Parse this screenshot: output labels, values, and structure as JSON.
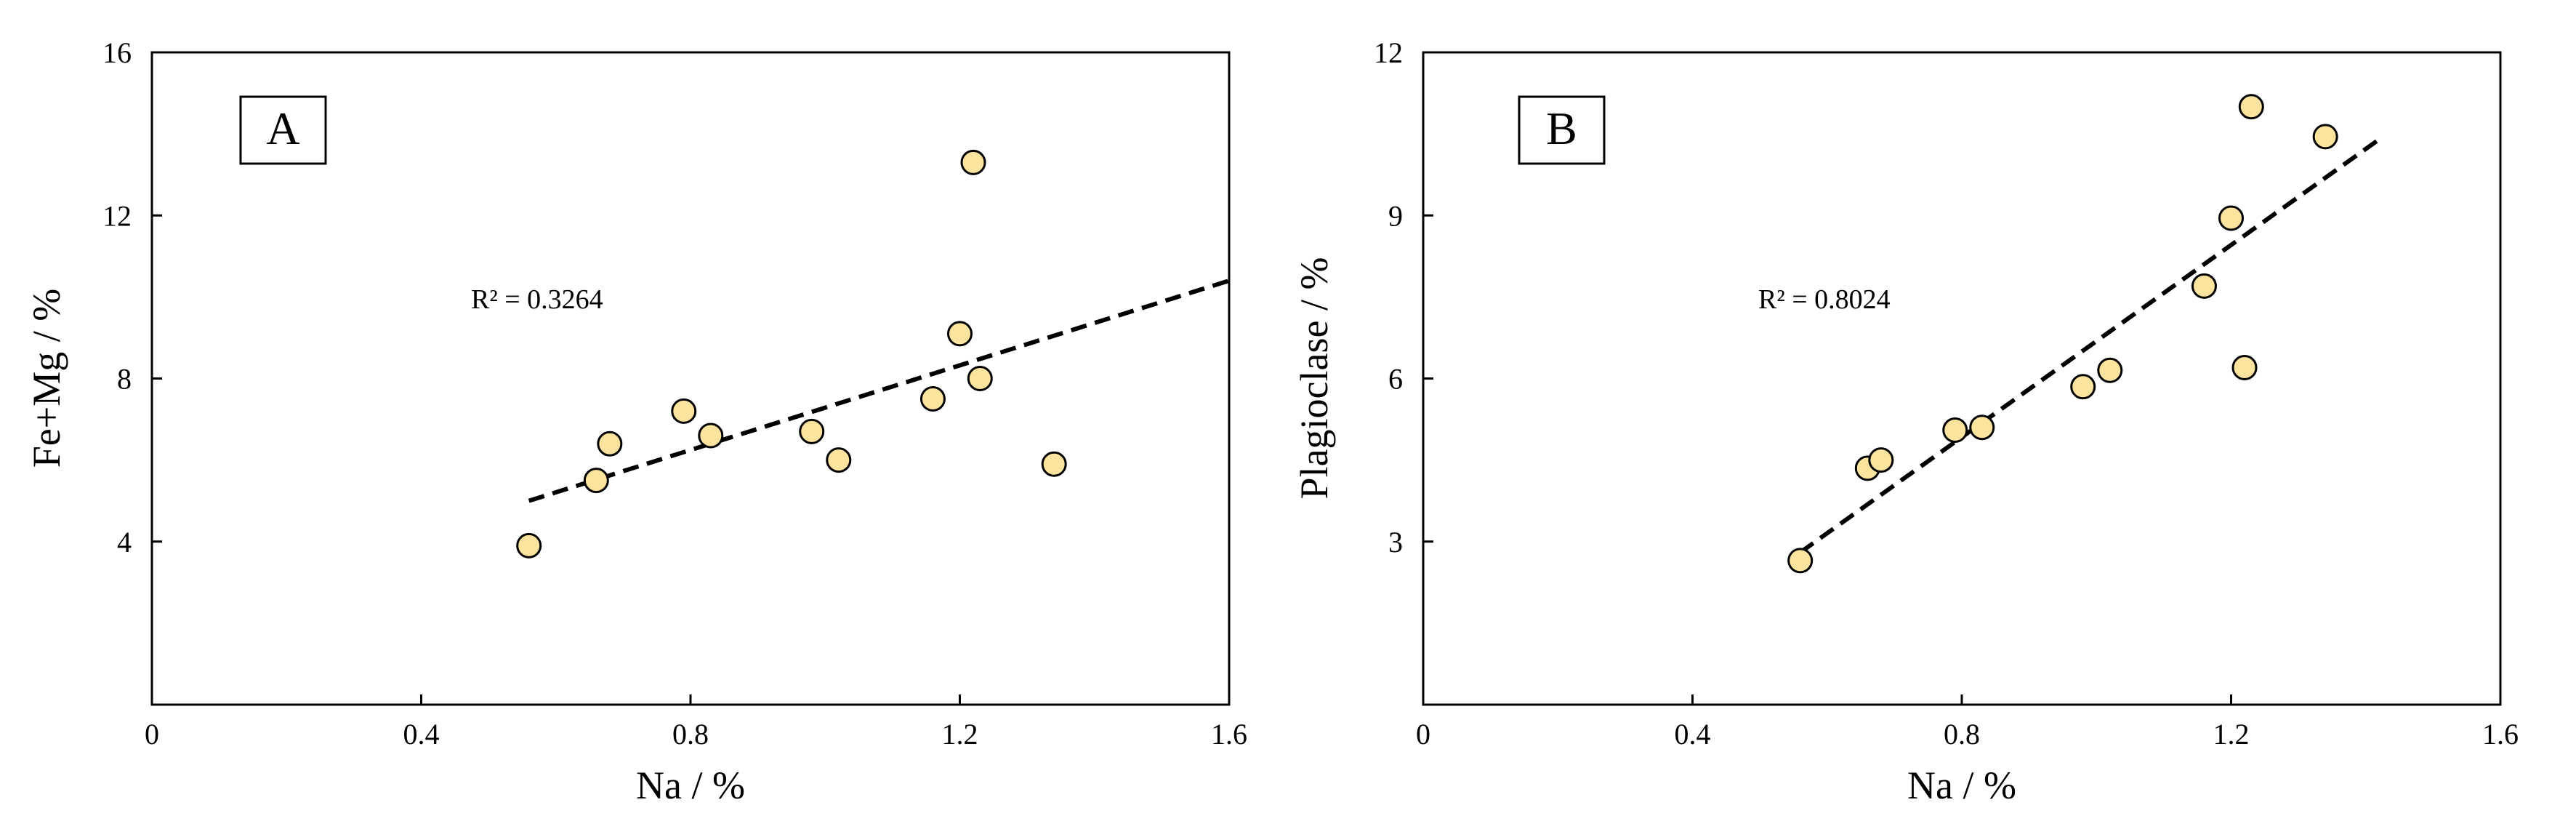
{
  "colors": {
    "marker_fill": "#fde49e",
    "marker_stroke": "#000000",
    "trendline": "#000000",
    "axis": "#000000",
    "background": "#ffffff"
  },
  "chart_data": [
    {
      "type": "scatter",
      "panel_label": "A",
      "title": "",
      "xlabel": "Na / %",
      "ylabel": "Fe+Mg / %",
      "xlim": [
        0,
        1.6
      ],
      "ylim": [
        0,
        16
      ],
      "x_ticks": [
        "0",
        "0.4",
        "0.8",
        "1.2",
        "1.6"
      ],
      "y_ticks": [
        "4",
        "8",
        "12",
        "16"
      ],
      "y_tick_values": [
        4,
        8,
        12,
        16
      ],
      "grid": false,
      "annotation": "R² = 0.3264",
      "trendline": {
        "style": "dashed",
        "x": [
          0.56,
          1.6
        ],
        "y": [
          5.0,
          10.4
        ]
      },
      "series": [
        {
          "x": [
            0.56,
            0.66,
            0.68,
            0.79,
            0.83,
            0.98,
            1.02,
            1.16,
            1.2,
            1.22,
            1.23,
            1.34
          ],
          "y": [
            3.9,
            5.5,
            6.4,
            7.2,
            6.6,
            6.7,
            6.0,
            7.5,
            9.1,
            13.3,
            8.0,
            5.9
          ]
        }
      ]
    },
    {
      "type": "scatter",
      "panel_label": "B",
      "title": "",
      "xlabel": "Na / %",
      "ylabel": "Plagioclase / %",
      "xlim": [
        0,
        1.6
      ],
      "ylim": [
        0,
        12
      ],
      "x_ticks": [
        "0",
        "0.4",
        "0.8",
        "1.2",
        "1.6"
      ],
      "y_ticks": [
        "3",
        "6",
        "9",
        "12"
      ],
      "y_tick_values": [
        3,
        6,
        9,
        12
      ],
      "grid": false,
      "annotation": "R² = 0.8024",
      "trendline": {
        "style": "dashed",
        "x": [
          0.56,
          1.42
        ],
        "y": [
          2.8,
          10.4
        ]
      },
      "series": [
        {
          "x": [
            0.56,
            0.66,
            0.68,
            0.79,
            0.83,
            0.98,
            1.02,
            1.16,
            1.2,
            1.22,
            1.23,
            1.34
          ],
          "y": [
            2.65,
            4.35,
            4.5,
            5.05,
            5.1,
            5.85,
            6.15,
            7.7,
            8.95,
            6.2,
            11.0,
            10.45
          ]
        }
      ]
    }
  ]
}
